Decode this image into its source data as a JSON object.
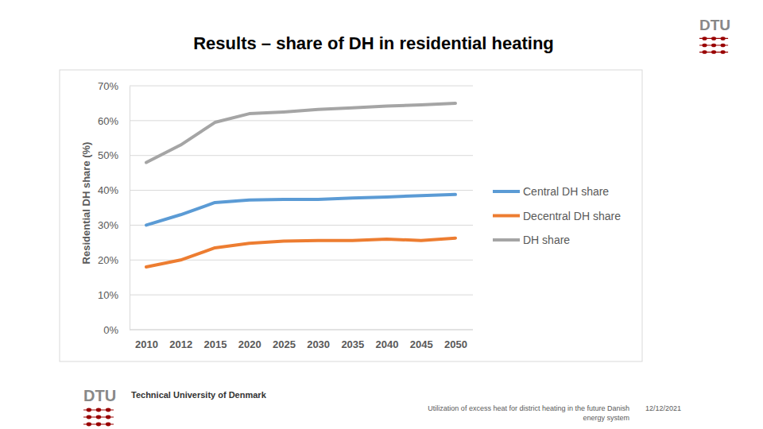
{
  "chart_data": {
    "type": "line",
    "title": "Results – share of DH in residential heating",
    "y_label": "Residential DH share (%)",
    "categories": [
      "2010",
      "2012",
      "2015",
      "2020",
      "2025",
      "2030",
      "2035",
      "2040",
      "2045",
      "2050"
    ],
    "series": [
      {
        "name": "Central DH share",
        "color": "#5b9bd5",
        "values": [
          30,
          33,
          36.5,
          37.2,
          37.4,
          37.4,
          37.8,
          38.1,
          38.5,
          38.8
        ]
      },
      {
        "name": "Decentral DH share",
        "color": "#ed7d31",
        "values": [
          18,
          20,
          23.5,
          24.8,
          25.4,
          25.6,
          25.6,
          26,
          25.6,
          26.3
        ]
      },
      {
        "name": "DH share",
        "color": "#a5a5a5",
        "values": [
          48,
          53,
          59.5,
          62,
          62.5,
          63.2,
          63.7,
          64.2,
          64.5,
          65
        ]
      }
    ],
    "ylim": [
      0,
      70
    ],
    "yticks": [
      {
        "value": 0,
        "label": "0%"
      },
      {
        "value": 10,
        "label": "10%"
      },
      {
        "value": 20,
        "label": "20%"
      },
      {
        "value": 30,
        "label": "30%"
      },
      {
        "value": 40,
        "label": "40%"
      },
      {
        "value": 50,
        "label": "50%"
      },
      {
        "value": 60,
        "label": "60%"
      },
      {
        "value": 70,
        "label": "70%"
      }
    ],
    "grid": true,
    "legend": "right"
  },
  "slide": {
    "logo": "DTU",
    "institution": "Technical University of Denmark",
    "footer": "Utilization of excess heat for district heating in the future Danish energy system",
    "date": "12/12/2021"
  }
}
